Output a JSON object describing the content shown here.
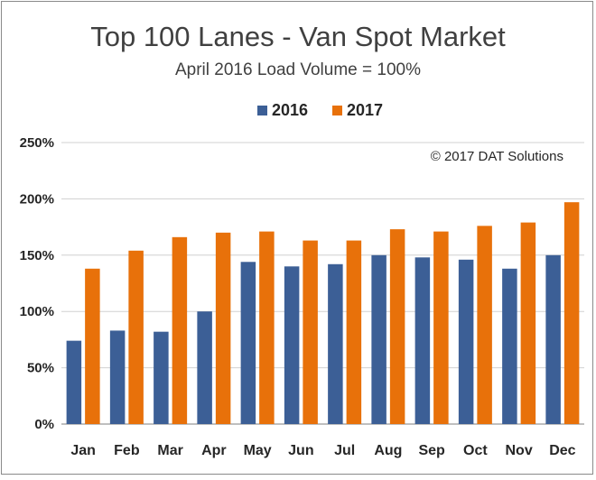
{
  "chart_data": {
    "type": "bar",
    "title": "Top 100 Lanes - Van Spot Market",
    "subtitle": "April 2016 Load Volume = 100%",
    "annotation": "© 2017 DAT Solutions",
    "categories": [
      "Jan",
      "Feb",
      "Mar",
      "Apr",
      "May",
      "Jun",
      "Jul",
      "Aug",
      "Sep",
      "Oct",
      "Nov",
      "Dec"
    ],
    "series": [
      {
        "name": "2016",
        "color": "#3c5f96",
        "values": [
          74,
          83,
          82,
          100,
          144,
          140,
          142,
          150,
          148,
          146,
          138,
          150
        ]
      },
      {
        "name": "2017",
        "color": "#e8710a",
        "values": [
          138,
          154,
          166,
          170,
          171,
          163,
          163,
          173,
          171,
          176,
          179,
          197
        ]
      }
    ],
    "y_ticks": [
      "0%",
      "50%",
      "100%",
      "150%",
      "200%",
      "250%"
    ],
    "ylim": [
      0,
      250
    ],
    "legend_position": "top-center",
    "grid": true
  }
}
